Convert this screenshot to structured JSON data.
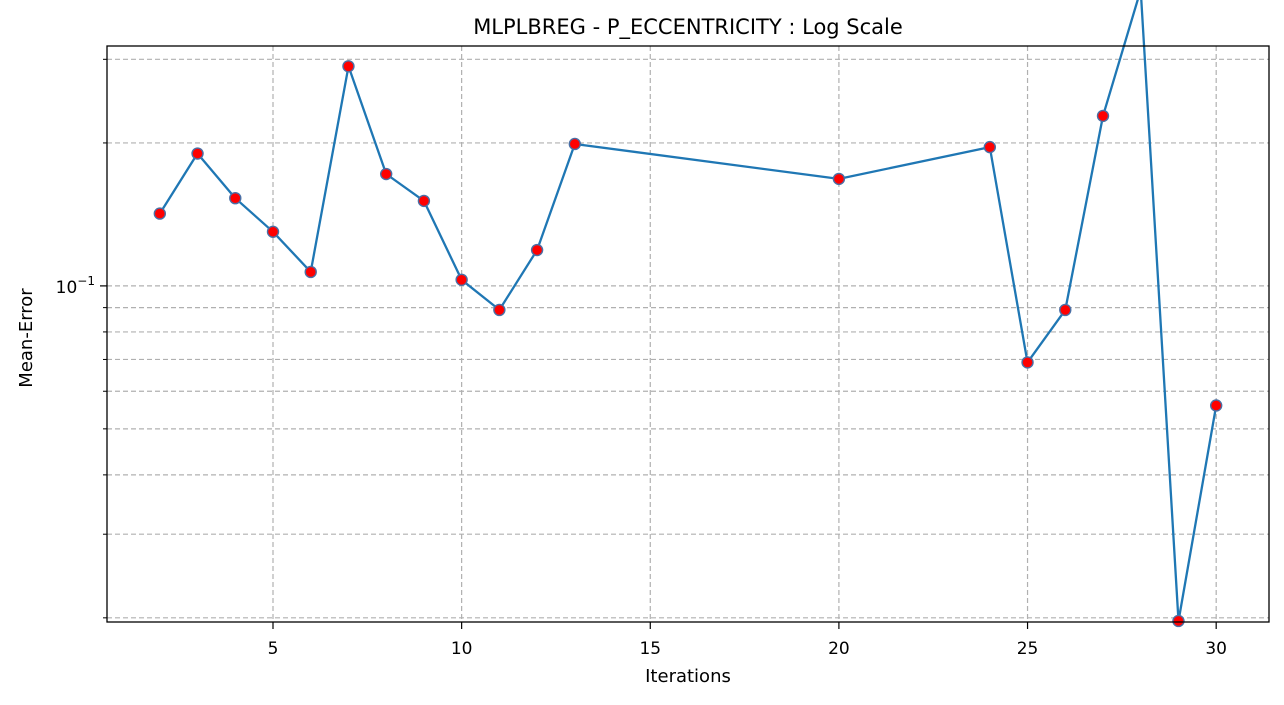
{
  "chart_data": {
    "type": "line",
    "title": "MLPLBREG - P_ECCENTRICITY : Log Scale",
    "xlabel": "Iterations",
    "ylabel": "Mean-Error",
    "yscale": "log",
    "xlim": [
      0.6,
      31.4
    ],
    "ylim": [
      0.0196,
      0.32
    ],
    "x_ticks": [
      5,
      10,
      15,
      20,
      25,
      30
    ],
    "x_tick_labels": [
      "5",
      "10",
      "15",
      "20",
      "25",
      "30"
    ],
    "y_major_ticks": [
      0.1
    ],
    "y_major_tick_labels": [
      {
        "base": "10",
        "exponent": "−1"
      }
    ],
    "y_minor_ticks": [
      0.02,
      0.03,
      0.04,
      0.05,
      0.06,
      0.07,
      0.08,
      0.09,
      0.2,
      0.3
    ],
    "grid": true,
    "legend": "none",
    "series": [
      {
        "x": [
          2,
          3,
          4,
          5,
          6,
          7,
          8,
          9,
          10,
          11,
          12,
          13,
          20,
          24,
          25,
          26,
          27,
          28,
          29,
          30
        ],
        "y": [
          0.142,
          0.19,
          0.153,
          0.13,
          0.107,
          0.29,
          0.172,
          0.151,
          0.103,
          0.089,
          0.119,
          0.199,
          0.168,
          0.196,
          0.069,
          0.089,
          0.228,
          0.42,
          0.0197,
          0.056
        ]
      }
    ],
    "colors": {
      "line": "#1f77b4",
      "marker_face": "#ff0000",
      "marker_edge": "#4a6fa5",
      "grid": "#b0b0b0",
      "axes": "#000000"
    }
  }
}
